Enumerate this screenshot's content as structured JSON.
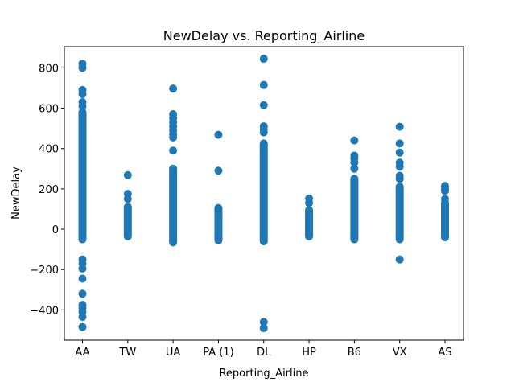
{
  "chart_data": {
    "type": "scatter",
    "title": "NewDelay vs. Reporting_Airline",
    "xlabel": "Reporting_Airline",
    "ylabel": "NewDelay",
    "categories": [
      "AA",
      "TW",
      "UA",
      "PA (1)",
      "DL",
      "HP",
      "B6",
      "VX",
      "AS"
    ],
    "ylim": [
      -550,
      905
    ],
    "yticks": [
      -400,
      -200,
      0,
      200,
      400,
      600,
      800
    ],
    "ytick_labels": [
      "−400",
      "−200",
      "0",
      "200",
      "400",
      "600",
      "800"
    ],
    "grid": false,
    "marker_color": "#1f77b4",
    "bands": [
      {
        "category": "AA",
        "min": -70,
        "max": 600
      },
      {
        "category": "TW",
        "min": -55,
        "max": 130
      },
      {
        "category": "UA",
        "min": -85,
        "max": 320
      },
      {
        "category": "PA (1)",
        "min": -75,
        "max": 125
      },
      {
        "category": "DL",
        "min": -80,
        "max": 445
      },
      {
        "category": "HP",
        "min": -55,
        "max": 115
      },
      {
        "category": "B6",
        "min": -70,
        "max": 270
      },
      {
        "category": "VX",
        "min": -70,
        "max": 230
      },
      {
        "category": "AS",
        "min": -60,
        "max": 150
      }
    ],
    "points": [
      {
        "category": "AA",
        "y": 820
      },
      {
        "category": "AA",
        "y": 800
      },
      {
        "category": "AA",
        "y": 690
      },
      {
        "category": "AA",
        "y": 670
      },
      {
        "category": "AA",
        "y": 630
      },
      {
        "category": "AA",
        "y": 610
      },
      {
        "category": "AA",
        "y": -150
      },
      {
        "category": "AA",
        "y": -170
      },
      {
        "category": "AA",
        "y": -195
      },
      {
        "category": "AA",
        "y": -245
      },
      {
        "category": "AA",
        "y": -320
      },
      {
        "category": "AA",
        "y": -375
      },
      {
        "category": "AA",
        "y": -390
      },
      {
        "category": "AA",
        "y": -410
      },
      {
        "category": "AA",
        "y": -435
      },
      {
        "category": "AA",
        "y": -485
      },
      {
        "category": "TW",
        "y": 268
      },
      {
        "category": "TW",
        "y": 175
      },
      {
        "category": "TW",
        "y": 150
      },
      {
        "category": "UA",
        "y": 697
      },
      {
        "category": "UA",
        "y": 570
      },
      {
        "category": "UA",
        "y": 550
      },
      {
        "category": "UA",
        "y": 530
      },
      {
        "category": "UA",
        "y": 510
      },
      {
        "category": "UA",
        "y": 490
      },
      {
        "category": "UA",
        "y": 470
      },
      {
        "category": "UA",
        "y": 455
      },
      {
        "category": "UA",
        "y": 390
      },
      {
        "category": "PA (1)",
        "y": 468
      },
      {
        "category": "PA (1)",
        "y": 290
      },
      {
        "category": "DL",
        "y": 845
      },
      {
        "category": "DL",
        "y": 715
      },
      {
        "category": "DL",
        "y": 615
      },
      {
        "category": "DL",
        "y": 510
      },
      {
        "category": "DL",
        "y": 495
      },
      {
        "category": "DL",
        "y": 480
      },
      {
        "category": "DL",
        "y": -460
      },
      {
        "category": "DL",
        "y": -490
      },
      {
        "category": "HP",
        "y": 152
      },
      {
        "category": "HP",
        "y": 130
      },
      {
        "category": "B6",
        "y": 440
      },
      {
        "category": "B6",
        "y": 365
      },
      {
        "category": "B6",
        "y": 350
      },
      {
        "category": "B6",
        "y": 330
      },
      {
        "category": "B6",
        "y": 300
      },
      {
        "category": "VX",
        "y": 508
      },
      {
        "category": "VX",
        "y": 425
      },
      {
        "category": "VX",
        "y": 380
      },
      {
        "category": "VX",
        "y": 330
      },
      {
        "category": "VX",
        "y": 310
      },
      {
        "category": "VX",
        "y": 265
      },
      {
        "category": "VX",
        "y": 250
      },
      {
        "category": "VX",
        "y": -150
      },
      {
        "category": "AS",
        "y": 215
      },
      {
        "category": "AS",
        "y": 200
      },
      {
        "category": "AS",
        "y": 190
      },
      {
        "category": "AS",
        "y": 150
      },
      {
        "category": "AS",
        "y": 115
      }
    ]
  }
}
